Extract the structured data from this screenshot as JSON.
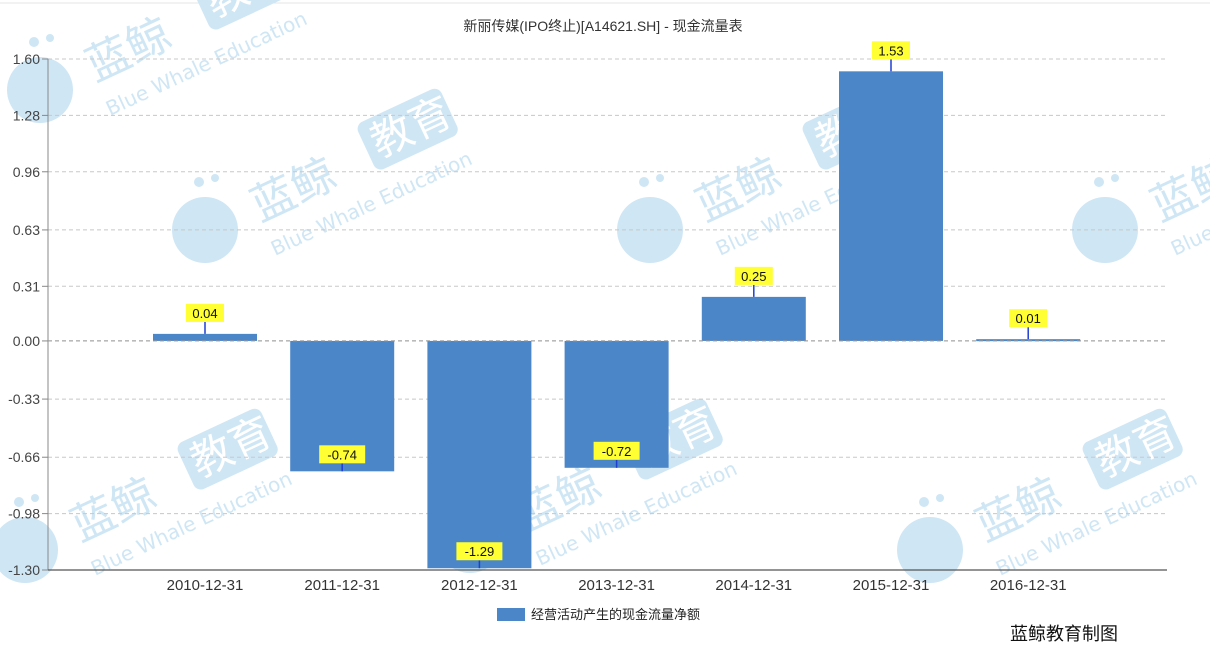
{
  "chart_data": {
    "type": "bar",
    "title": "新丽传媒(IPO终止)[A14621.SH] - 现金流量表",
    "categories": [
      "2010-12-31",
      "2011-12-31",
      "2012-12-31",
      "2013-12-31",
      "2014-12-31",
      "2015-12-31",
      "2016-12-31"
    ],
    "series": [
      {
        "name": "经营活动产生的现金流量净额",
        "values": [
          0.04,
          -0.74,
          -1.29,
          -0.72,
          0.25,
          1.53,
          0.01
        ],
        "color": "#4a86c8"
      }
    ],
    "data_labels": [
      "0.04",
      "-0.74",
      "-1.29",
      "-0.72",
      "0.25",
      "1.53",
      "0.01"
    ],
    "y_ticks": [
      "1.60",
      "1.28",
      "0.96",
      "0.63",
      "0.31",
      "0.00",
      "-0.33",
      "-0.66",
      "-0.98",
      "-1.30"
    ],
    "ylim": [
      -1.3,
      1.6
    ],
    "xlabel": "",
    "ylabel": "",
    "grid": true,
    "legend_position": "bottom",
    "label_bg_color": "#ffff33"
  },
  "watermark": {
    "cn": "蓝鲸",
    "cn_box": "教育",
    "en": "Blue Whale Education",
    "color": "#cfe6f5"
  },
  "footer": {
    "credit": "蓝鲸教育制图"
  }
}
